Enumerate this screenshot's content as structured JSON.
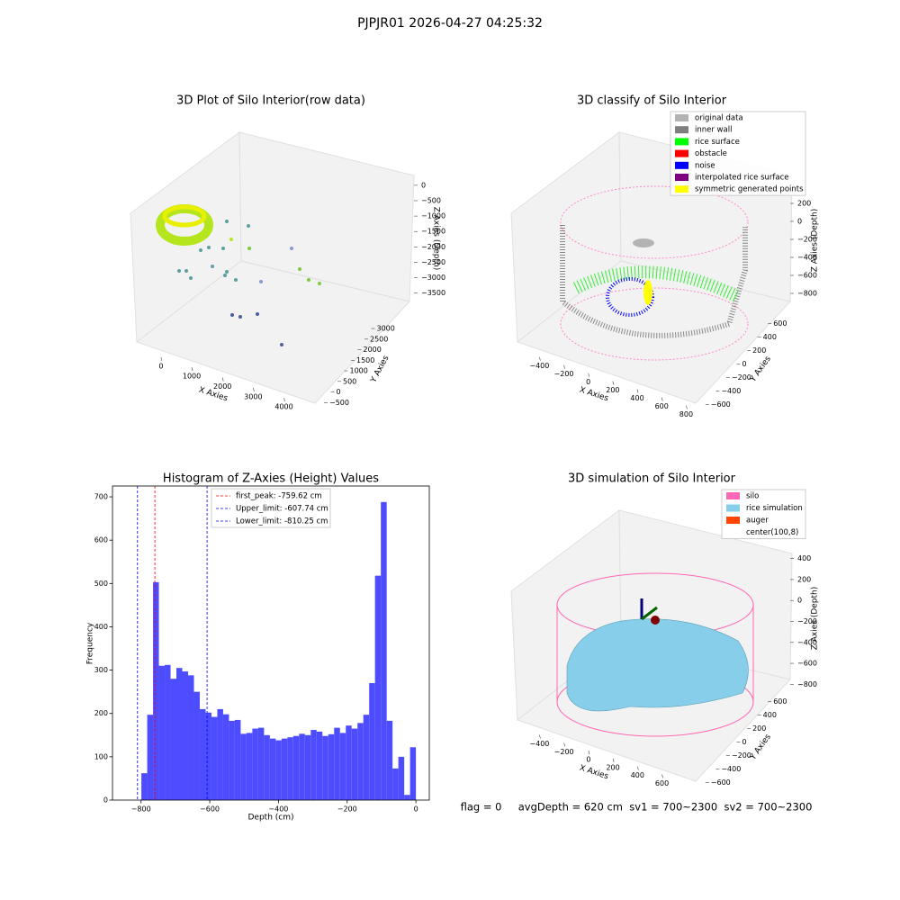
{
  "title": "PJPJR01 2026-04-27 04:25:32",
  "chart_data": [
    {
      "type": "scatter3d",
      "title": "3D Plot of Silo Interior(row data)",
      "xlabel": "X Axies",
      "ylabel": "Y Axies",
      "zlabel": "Z Axies (Depth)",
      "xlim": [
        -700,
        4600
      ],
      "xticks": [
        0,
        1000,
        2000,
        3000,
        4000
      ],
      "ylim": [
        -700,
        3300
      ],
      "yticks": [
        {
          "value": -500,
          "label": "−500"
        },
        0,
        500,
        1000,
        1500,
        2000,
        2500,
        3000
      ],
      "zlim": [
        -3800,
        200
      ],
      "zticks": [
        0,
        {
          "value": -500,
          "label": "−500"
        },
        {
          "value": -1000,
          "label": "−1000"
        },
        {
          "value": -1500,
          "label": "−1500"
        },
        {
          "value": -2000,
          "label": "−2000"
        },
        {
          "value": -2500,
          "label": "−2500"
        },
        {
          "value": -3000,
          "label": "−3000"
        },
        {
          "value": -3500,
          "label": "−3500"
        }
      ]
    },
    {
      "type": "scatter3d",
      "title": "3D classify of Silo Interior",
      "xlabel": "X Axies",
      "ylabel": "Y Axies",
      "zlabel": "Z Axies (Depth)",
      "xlim": [
        -550,
        900
      ],
      "xticks": [
        {
          "value": -400,
          "label": "−400"
        },
        {
          "value": -200,
          "label": "−200"
        },
        0,
        200,
        400,
        600,
        800
      ],
      "ylim": [
        -700,
        700
      ],
      "yticks": [
        {
          "value": -600,
          "label": "−600"
        },
        {
          "value": -400,
          "label": "−400"
        },
        {
          "value": -200,
          "label": "−200"
        },
        0,
        200,
        400,
        600
      ],
      "zlim": [
        -900,
        300
      ],
      "zticks": [
        200,
        0,
        {
          "value": -200,
          "label": "−200"
        },
        {
          "value": -400,
          "label": "−400"
        },
        {
          "value": -600,
          "label": "−600"
        },
        {
          "value": -800,
          "label": "−800"
        }
      ],
      "series": [
        {
          "name": "original data",
          "color": "#b3b3b3"
        },
        {
          "name": "inner wall",
          "color": "#808080"
        },
        {
          "name": "rice surface",
          "color": "#00ff00"
        },
        {
          "name": "obstacle",
          "color": "#ff0000"
        },
        {
          "name": "noise",
          "color": "#0000ff"
        },
        {
          "name": "interpolated rice surface",
          "color": "#800080"
        },
        {
          "name": "symmetric generated points",
          "color": "#ffff00"
        }
      ]
    },
    {
      "type": "histogram",
      "title": "Histogram of Z-Axies (Height) Values",
      "xlabel": "Depth (cm)",
      "ylabel": "Frequency",
      "color": "#4d4dff",
      "bins": [
        -799,
        -782,
        -765,
        -748,
        -731,
        -714,
        -697,
        -680,
        -663,
        -646,
        -629,
        -612,
        -595,
        -578,
        -561,
        -544,
        -527,
        -510,
        -493,
        -476,
        -459,
        -442,
        -425,
        -408,
        -391,
        -374,
        -357,
        -340,
        -323,
        -306,
        -289,
        -272,
        -255,
        -238,
        -221,
        -204,
        -187,
        -170,
        -153,
        -136,
        -119,
        -102,
        -85,
        -68,
        -51,
        -34,
        -17,
        0
      ],
      "values": [
        62,
        197,
        503,
        310,
        312,
        280,
        305,
        297,
        288,
        250,
        210,
        202,
        192,
        210,
        198,
        183,
        185,
        153,
        155,
        165,
        167,
        150,
        142,
        138,
        142,
        145,
        148,
        153,
        150,
        162,
        158,
        148,
        152,
        167,
        155,
        172,
        165,
        178,
        197,
        270,
        518,
        688,
        183,
        73,
        100,
        12,
        122
      ],
      "xlim": [
        -883,
        39
      ],
      "xticks": [
        {
          "value": -800,
          "label": "−800"
        },
        {
          "value": -600,
          "label": "−600"
        },
        {
          "value": -400,
          "label": "−400"
        },
        {
          "value": -200,
          "label": "−200"
        },
        0
      ],
      "ylim": [
        0,
        725
      ],
      "yticks": [
        0,
        100,
        200,
        300,
        400,
        500,
        600,
        700
      ],
      "vlines": [
        {
          "name": "first_peak: -759.62 cm",
          "value": -759.62,
          "color": "#ff0000"
        },
        {
          "name": "Upper_limit: -607.74 cm",
          "value": -607.74,
          "color": "#0000ff"
        },
        {
          "name": "Lower_limit: -810.25 cm",
          "value": -810.25,
          "color": "#0000ff"
        }
      ]
    },
    {
      "type": "surface3d",
      "title": "3D simulation of Silo Interior",
      "xlabel": "X Axies",
      "ylabel": "Y Axies",
      "zlabel": "Z Axies (Depth)",
      "xlim": [
        -550,
        750
      ],
      "xticks": [
        {
          "value": -400,
          "label": "−400"
        },
        {
          "value": -200,
          "label": "−200"
        },
        0,
        200,
        400,
        600
      ],
      "ylim": [
        -700,
        700
      ],
      "yticks": [
        {
          "value": -600,
          "label": "−600"
        },
        {
          "value": -400,
          "label": "−400"
        },
        {
          "value": -200,
          "label": "−200"
        },
        0,
        200,
        400,
        600
      ],
      "zlim": [
        -900,
        500
      ],
      "zticks": [
        400,
        200,
        0,
        {
          "value": -200,
          "label": "−200"
        },
        {
          "value": -400,
          "label": "−400"
        },
        {
          "value": -600,
          "label": "−600"
        },
        {
          "value": -800,
          "label": "−800"
        }
      ],
      "series": [
        {
          "name": "silo",
          "color": "#ff69b4"
        },
        {
          "name": "rice simulation",
          "color": "#87ceeb"
        },
        {
          "name": "auger",
          "color": "#ff4500"
        },
        {
          "name": "center(100,8)",
          "color": "#ffffff"
        }
      ],
      "annotation": "flag = 0     avgDepth = 620 cm  sv1 = 700~2300  sv2 = 700~2300"
    }
  ]
}
